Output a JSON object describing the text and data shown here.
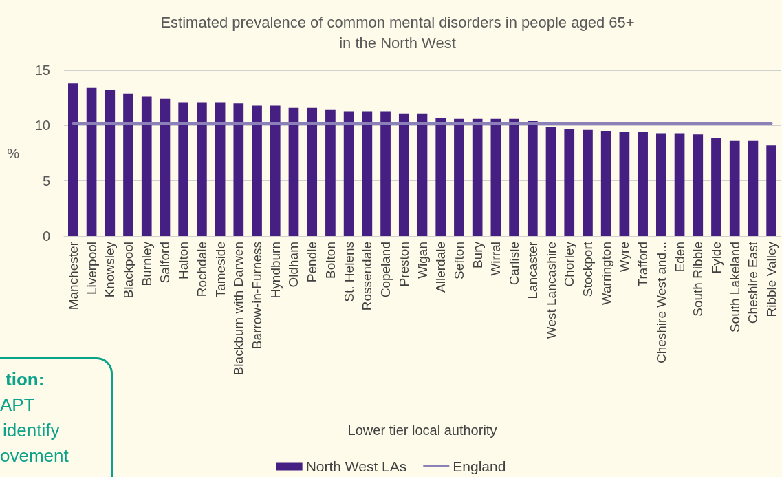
{
  "chart_data": {
    "type": "bar",
    "title": "Estimated prevalence of common mental disorders in people aged 65+\nin the North West",
    "xlabel": "Lower tier local authority",
    "ylabel": "%",
    "categories": [
      "Manchester",
      "Liverpool",
      "Knowsley",
      "Blackpool",
      "Burnley",
      "Salford",
      "Halton",
      "Rochdale",
      "Tameside",
      "Blackburn with Darwen",
      "Barrow-in-Furness",
      "Hyndburn",
      "Oldham",
      "Pendle",
      "Bolton",
      "St. Helens",
      "Rossendale",
      "Copeland",
      "Preston",
      "Wigan",
      "Allerdale",
      "Sefton",
      "Bury",
      "Wirral",
      "Carlisle",
      "Lancaster",
      "West Lancashire",
      "Chorley",
      "Stockport",
      "Warrington",
      "Wyre",
      "Trafford",
      "Cheshire West and...",
      "Eden",
      "South Ribble",
      "Fylde",
      "South Lakeland",
      "Cheshire East",
      "Ribble Valley"
    ],
    "series": [
      {
        "name": "North West LAs",
        "color": "#451f82",
        "values": [
          13.8,
          13.4,
          13.2,
          12.9,
          12.6,
          12.4,
          12.1,
          12.1,
          12.1,
          12.0,
          11.8,
          11.8,
          11.6,
          11.6,
          11.4,
          11.3,
          11.3,
          11.3,
          11.1,
          11.1,
          10.7,
          10.6,
          10.6,
          10.6,
          10.6,
          10.4,
          9.9,
          9.7,
          9.6,
          9.5,
          9.4,
          9.4,
          9.3,
          9.3,
          9.2,
          8.9,
          8.6,
          8.6,
          8.2
        ]
      },
      {
        "name": "England",
        "type": "line",
        "color": "#8c80b8",
        "values": [
          10.2,
          10.2,
          10.2,
          10.2,
          10.2,
          10.2,
          10.2,
          10.2,
          10.2,
          10.2,
          10.2,
          10.2,
          10.2,
          10.2,
          10.2,
          10.2,
          10.2,
          10.2,
          10.2,
          10.2,
          10.2,
          10.2,
          10.2,
          10.2,
          10.2,
          10.2,
          10.2,
          10.2,
          10.2,
          10.2,
          10.2,
          10.2,
          10.2,
          10.2,
          10.2,
          10.2,
          10.2,
          10.2,
          10.2
        ]
      }
    ],
    "ylim": [
      0,
      15
    ],
    "yticks": [
      0,
      5,
      10,
      15
    ],
    "grid": "y",
    "legend": "bottom",
    "marker": "none",
    "annotations": [
      "tion:",
      "APT",
      "identify",
      "ovement"
    ]
  }
}
